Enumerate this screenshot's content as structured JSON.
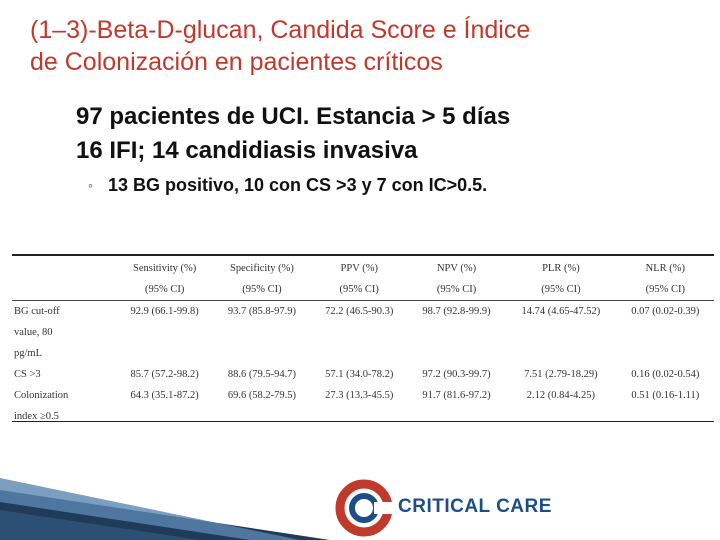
{
  "title": {
    "line1": "(1–3)-Beta-D-glucan, Candida Score e Índice",
    "line2": "de Colonización en pacientes críticos"
  },
  "bullets": [
    "97 pacientes de UCI. Estancia > 5 días",
    "16 IFI; 14 candidiasis invasiva"
  ],
  "sub_bullets": [
    "13 BG positivo, 10 con CS >3 y 7 con IC>0.5."
  ],
  "bullet_glyph": "",
  "sub_bullet_glyph": "◦",
  "table": {
    "headers": [
      "",
      "Sensitivity (%)",
      "Specificity (%)",
      "PPV (%)",
      "NPV (%)",
      "PLR (%)",
      "NLR (%)"
    ],
    "ci_labels": [
      "",
      "(95% CI)",
      "(95% CI)",
      "(95% CI)",
      "(95% CI)",
      "(95% CI)",
      "(95% CI)"
    ],
    "rows": [
      [
        "BG cut-off",
        "92.9 (66.1-99.8)",
        "93.7 (85.8-97.9)",
        "72.2 (46.5-90.3)",
        "98.7 (92.8-99.9)",
        "14.74 (4.65-47.52)",
        "0.07 (0.02-0.39)"
      ],
      [
        "value, 80",
        "",
        "",
        "",
        "",
        "",
        ""
      ],
      [
        "pg/mL",
        "",
        "",
        "",
        "",
        "",
        ""
      ],
      [
        "CS >3",
        "85.7 (57.2-98.2)",
        "88.6 (79.5-94.7)",
        "57.1 (34.0-78.2)",
        "97.2 (90.3-99.7)",
        "7.51 (2.79-18.29)",
        "0.16 (0.02-0.54)"
      ],
      [
        "Colonization",
        "64.3 (35.1-87.2)",
        "69.6 (58.2-79.5)",
        "27.3 (13.3-45.5)",
        "91.7 (81.6-97.2)",
        "2.12 (0.84-4.25)",
        "0.51 (0.16-1.11)"
      ],
      [
        "index ≥0.5",
        "",
        "",
        "",
        "",
        "",
        ""
      ]
    ]
  },
  "logo": {
    "text": "CRITICAL CARE",
    "icon": "critical-care-c-logo-icon",
    "colors": {
      "red": "#c0392b",
      "blue": "#1d4e89"
    }
  },
  "colors": {
    "title": "#c0392b",
    "stripe_dark": "#1f3b57",
    "stripe_light": "#5b86b0"
  }
}
